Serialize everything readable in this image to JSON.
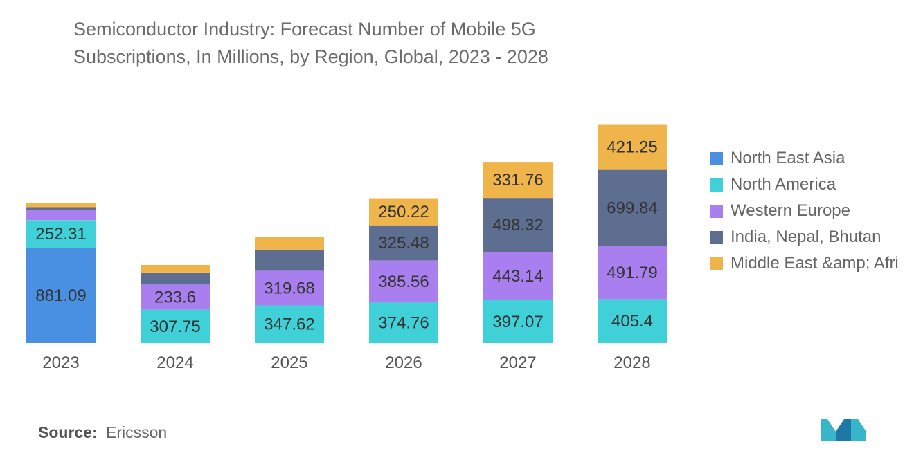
{
  "title": {
    "line1": "Semiconductor Industry: Forecast Number of Mobile 5G",
    "line2": "Subscriptions, In Millions, by Region, Global, 2023 - 2028"
  },
  "source": {
    "label": "Source:",
    "value": "Ericsson"
  },
  "logo": {
    "icon": "mordor-intelligence-logo-icon"
  },
  "chart_data": {
    "type": "bar",
    "stacked": true,
    "title": "Semiconductor Industry: Forecast Number of Mobile 5G Subscriptions, In Millions, by Region, Global, 2023 - 2028",
    "xlabel": "",
    "ylabel": "",
    "ylim": [
      0,
      2200
    ],
    "grid": false,
    "legend_position": "right",
    "categories": [
      "2023",
      "2024",
      "2025",
      "2026",
      "2027",
      "2028"
    ],
    "series": [
      {
        "name": "North East Asia",
        "color": "#4a90e2",
        "values": [
          881.09,
          null,
          null,
          null,
          null,
          null
        ],
        "labels": [
          "881.09",
          "",
          "",
          "",
          "",
          ""
        ]
      },
      {
        "name": "North America",
        "color": "#40d0d8",
        "values": [
          252.31,
          307.75,
          347.62,
          374.76,
          397.07,
          405.4
        ],
        "labels": [
          "252.31",
          "307.75",
          "347.62",
          "374.76",
          "397.07",
          "405.4"
        ]
      },
      {
        "name": "Western Europe",
        "color": "#a97ff0",
        "values": [
          90,
          233.6,
          319.68,
          385.56,
          443.14,
          491.79
        ],
        "labels": [
          "",
          "233.6",
          "319.68",
          "385.56",
          "443.14",
          "491.79"
        ]
      },
      {
        "name": "India, Nepal, Bhutan",
        "color": "#5e6e91",
        "values": [
          30,
          110,
          195,
          325.48,
          498.32,
          699.84
        ],
        "labels": [
          "",
          "",
          "",
          "325.48",
          "498.32",
          "699.84"
        ]
      },
      {
        "name": "Middle East &amp; Afri",
        "color": "#efb54a",
        "values": [
          35,
          70,
          120,
          250.22,
          331.76,
          421.25
        ],
        "labels": [
          "",
          "",
          "",
          "250.22",
          "331.76",
          "421.25"
        ]
      }
    ]
  }
}
